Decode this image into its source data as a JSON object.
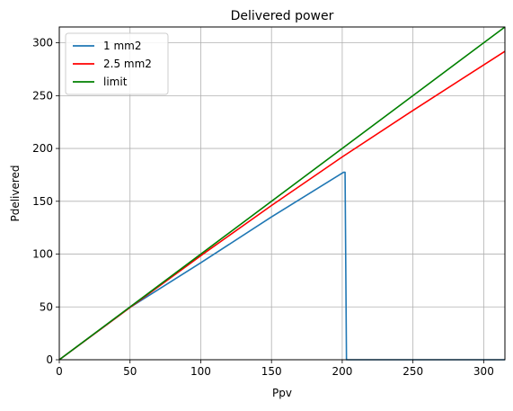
{
  "chart_data": {
    "type": "line",
    "title": "Delivered power",
    "xlabel": "Ppv",
    "ylabel": "Pdelivered",
    "xlim": [
      0,
      315
    ],
    "ylim": [
      0,
      315
    ],
    "x_ticks": [
      0,
      50,
      100,
      150,
      200,
      250,
      300
    ],
    "y_ticks": [
      0,
      50,
      100,
      150,
      200,
      250,
      300
    ],
    "grid": true,
    "legend_position": "top-left",
    "series": [
      {
        "name": "1 mm2",
        "color": "#1f77b4",
        "x": [
          0,
          50,
          100,
          150,
          201,
          202,
          203,
          250,
          315
        ],
        "y": [
          0,
          49.5,
          91.8,
          135.2,
          177.5,
          177.5,
          0,
          0,
          0
        ]
      },
      {
        "name": "2.5 mm2",
        "color": "#ff0000",
        "x": [
          0,
          50,
          100,
          150,
          200,
          250,
          315
        ],
        "y": [
          0,
          49.5,
          98.5,
          146.0,
          192.0,
          236.0,
          292.0
        ]
      },
      {
        "name": "limit",
        "color": "#008000",
        "x": [
          0,
          315
        ],
        "y": [
          0,
          315
        ]
      }
    ]
  }
}
